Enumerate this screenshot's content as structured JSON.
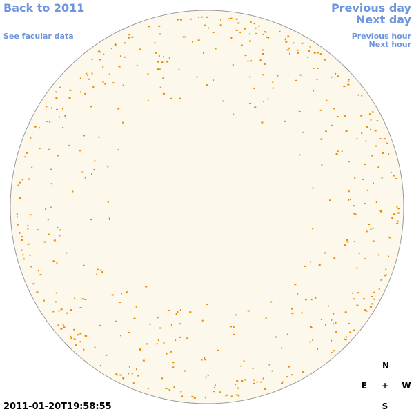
{
  "header": {
    "back_link": "Back to 2011",
    "data_link": "See facular data",
    "previous_day": "Previous day",
    "next_day": "Next day",
    "previous_hour": "Previous hour",
    "next_hour": "Next hour"
  },
  "timestamp": "2011-01-20T19:58:55",
  "compass": {
    "north": "N",
    "east": "E",
    "center": "+",
    "west": "W",
    "south": "S"
  }
}
